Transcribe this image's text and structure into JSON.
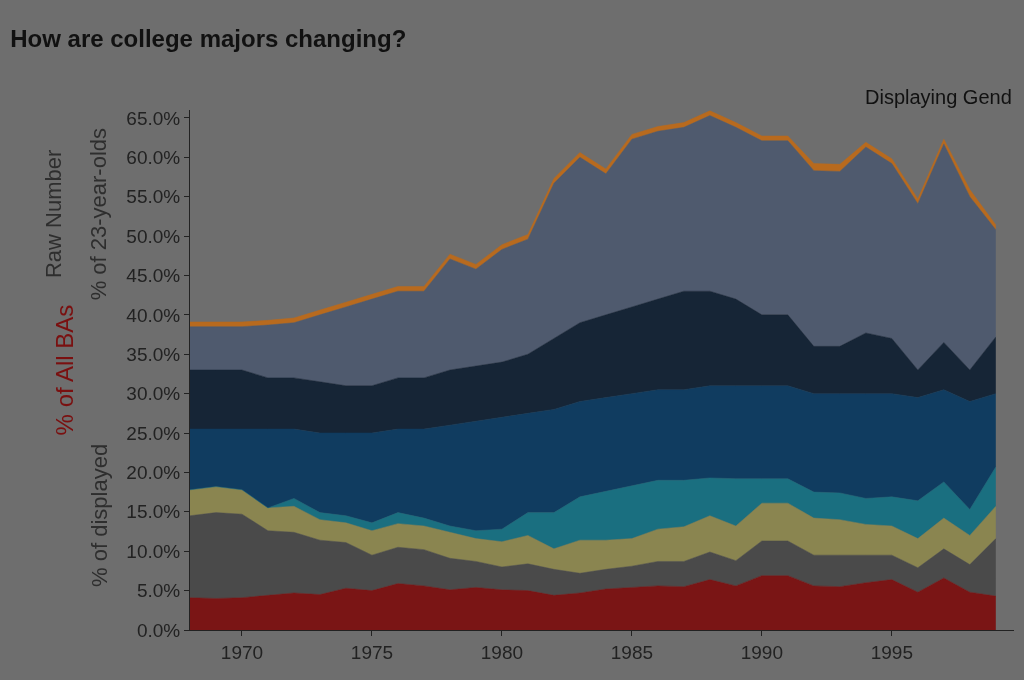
{
  "chart_data": {
    "type": "area",
    "stacked": true,
    "title": "How are college majors changing?",
    "ylabel": "% of All BAs",
    "annotations": [
      "Displaying Gend",
      "Raw Number",
      "% of 23-year-olds",
      "% of displayed"
    ],
    "x": [
      1968,
      1969,
      1970,
      1971,
      1972,
      1973,
      1974,
      1975,
      1976,
      1977,
      1978,
      1979,
      1980,
      1981,
      1982,
      1983,
      1984,
      1985,
      1986,
      1987,
      1988,
      1989,
      1990,
      1991,
      1992,
      1993,
      1994,
      1995,
      1996,
      1997,
      1998,
      1999
    ],
    "xlim": [
      1968,
      1999.7
    ],
    "xticks": [
      1970,
      1975,
      1980,
      1985,
      1990,
      1995
    ],
    "ylim": [
      0,
      66
    ],
    "yticks": [
      {
        "value": 0,
        "label": "0.0%"
      },
      {
        "value": 5,
        "label": "5.0%"
      },
      {
        "value": 10,
        "label": "10.0%"
      },
      {
        "value": 15,
        "label": "15.0%"
      },
      {
        "value": 20,
        "label": "20.0%"
      },
      {
        "value": 25,
        "label": "25.0%"
      },
      {
        "value": 30,
        "label": "30.0%"
      },
      {
        "value": 35,
        "label": "35.0%"
      },
      {
        "value": 40,
        "label": "40.0%"
      },
      {
        "value": 45,
        "label": "45.0%"
      },
      {
        "value": 50,
        "label": "50.0%"
      },
      {
        "value": 55,
        "label": "55.0%"
      },
      {
        "value": 60,
        "label": "60.0%"
      },
      {
        "value": 65,
        "label": "65.0%"
      }
    ],
    "grid": false,
    "series": [
      {
        "color": "#7a1515",
        "values": [
          4.1,
          4.0,
          4.1,
          4.4,
          4.7,
          4.5,
          5.3,
          5.0,
          5.9,
          5.6,
          5.1,
          5.4,
          5.1,
          5.0,
          4.4,
          4.7,
          5.2,
          5.4,
          5.6,
          5.5,
          6.4,
          5.6,
          6.9,
          6.9,
          5.6,
          5.5,
          6.0,
          6.4,
          4.8,
          6.6,
          4.8,
          4.3
        ]
      },
      {
        "color": "#4a4a4a",
        "values": [
          10.4,
          10.9,
          10.6,
          8.2,
          7.7,
          6.9,
          5.8,
          4.5,
          4.6,
          4.6,
          4.0,
          3.3,
          2.9,
          3.4,
          3.3,
          2.5,
          2.5,
          2.7,
          3.1,
          3.2,
          3.5,
          3.2,
          4.4,
          4.4,
          3.9,
          4.0,
          3.5,
          3.1,
          3.1,
          3.7,
          3.5,
          7.3
        ]
      },
      {
        "color": "#8a8550",
        "values": [
          3.3,
          3.3,
          3.1,
          2.9,
          3.3,
          2.6,
          2.5,
          3.1,
          3.0,
          3.0,
          3.3,
          2.9,
          3.2,
          3.6,
          2.6,
          4.2,
          3.7,
          3.5,
          4.1,
          4.4,
          4.6,
          4.4,
          4.8,
          4.8,
          4.7,
          4.5,
          3.9,
          3.7,
          3.7,
          3.9,
          3.7,
          4.1
        ]
      },
      {
        "color": "#1a6f80",
        "values": [
          0,
          0,
          0,
          0,
          1.0,
          0.9,
          0.9,
          1.0,
          1.4,
          1.0,
          0.8,
          1.0,
          1.6,
          2.9,
          4.6,
          5.5,
          6.2,
          6.7,
          6.2,
          5.9,
          4.8,
          6.0,
          3.1,
          3.1,
          3.3,
          3.4,
          3.3,
          3.7,
          4.8,
          4.6,
          3.3,
          5.0
        ]
      },
      {
        "color": "#103c60",
        "values": [
          7.7,
          7.3,
          7.7,
          10.0,
          8.8,
          10.1,
          10.5,
          11.4,
          10.6,
          11.3,
          12.8,
          13.9,
          14.2,
          12.6,
          13.1,
          12.1,
          11.9,
          11.7,
          11.5,
          11.5,
          11.7,
          11.8,
          11.8,
          11.8,
          12.5,
          12.6,
          13.3,
          13.1,
          13.1,
          11.7,
          13.7,
          9.3
        ]
      },
      {
        "color": "#162536",
        "values": [
          7.5,
          7.5,
          7.5,
          6.5,
          6.5,
          6.5,
          6.0,
          6.0,
          6.5,
          6.5,
          7.0,
          7.0,
          7.0,
          7.5,
          9.0,
          10.0,
          10.5,
          11.0,
          11.5,
          12.5,
          12.0,
          11.0,
          9.0,
          9.0,
          6.0,
          6.0,
          7.7,
          7.0,
          3.5,
          6.0,
          4.0,
          7.2
        ]
      },
      {
        "color": "#4f5a6e",
        "values": [
          5.5,
          5.5,
          5.5,
          6.7,
          7.0,
          8.5,
          10.0,
          11.0,
          11.0,
          11.0,
          14.1,
          12.3,
          14.3,
          14.6,
          19.7,
          21.0,
          17.9,
          21.3,
          21.3,
          20.8,
          22.3,
          21.8,
          22.1,
          22.1,
          22.3,
          22.2,
          23.6,
          22.2,
          21.1,
          25.2,
          22.0,
          13.6
        ]
      },
      {
        "color": "#b86a1e",
        "values": [
          0.6,
          0.6,
          0.6,
          0.6,
          0.6,
          0.6,
          0.6,
          0.6,
          0.6,
          0.6,
          0.6,
          0.6,
          0.6,
          0.6,
          0.6,
          0.6,
          0.6,
          0.6,
          0.6,
          0.6,
          0.6,
          0.6,
          0.6,
          0.6,
          0.9,
          0.9,
          0.6,
          0.6,
          0.6,
          0.6,
          0.9,
          0.6
        ]
      }
    ]
  }
}
